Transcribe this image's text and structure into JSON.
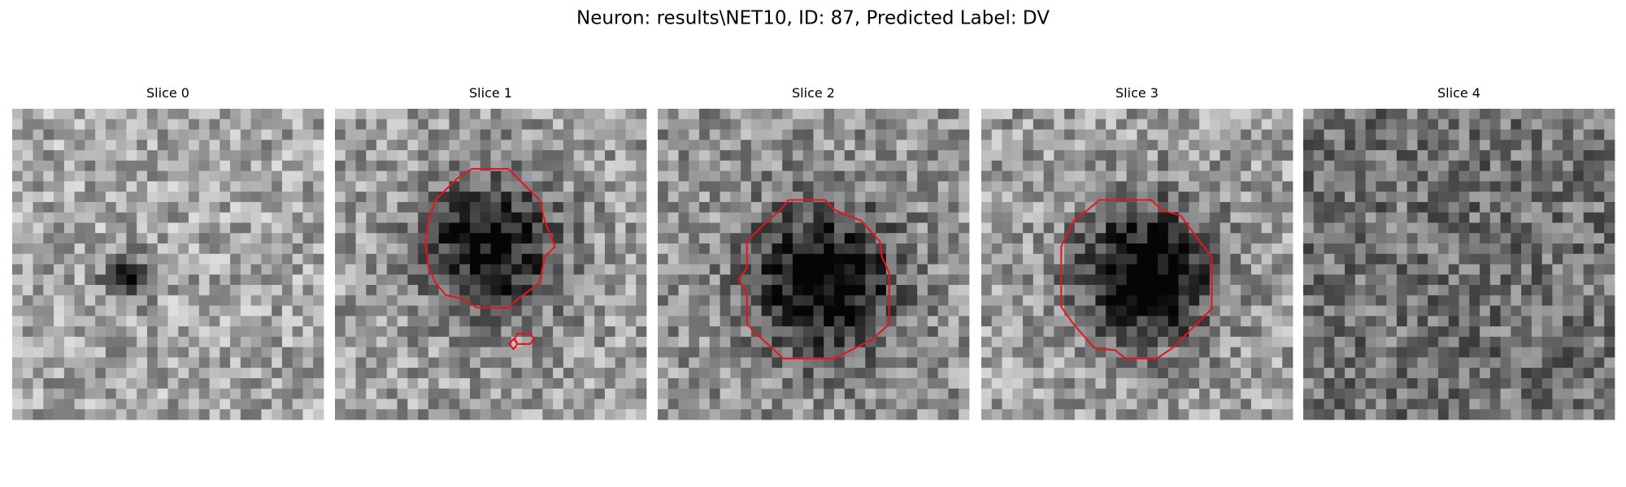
{
  "title": "Neuron: results\\NET10, ID: 87, Predicted Label: DV",
  "panels": [
    {
      "title": "Slice 0"
    },
    {
      "title": "Slice 1"
    },
    {
      "title": "Slice 2"
    },
    {
      "title": "Slice 3"
    },
    {
      "title": "Slice 4"
    }
  ]
}
